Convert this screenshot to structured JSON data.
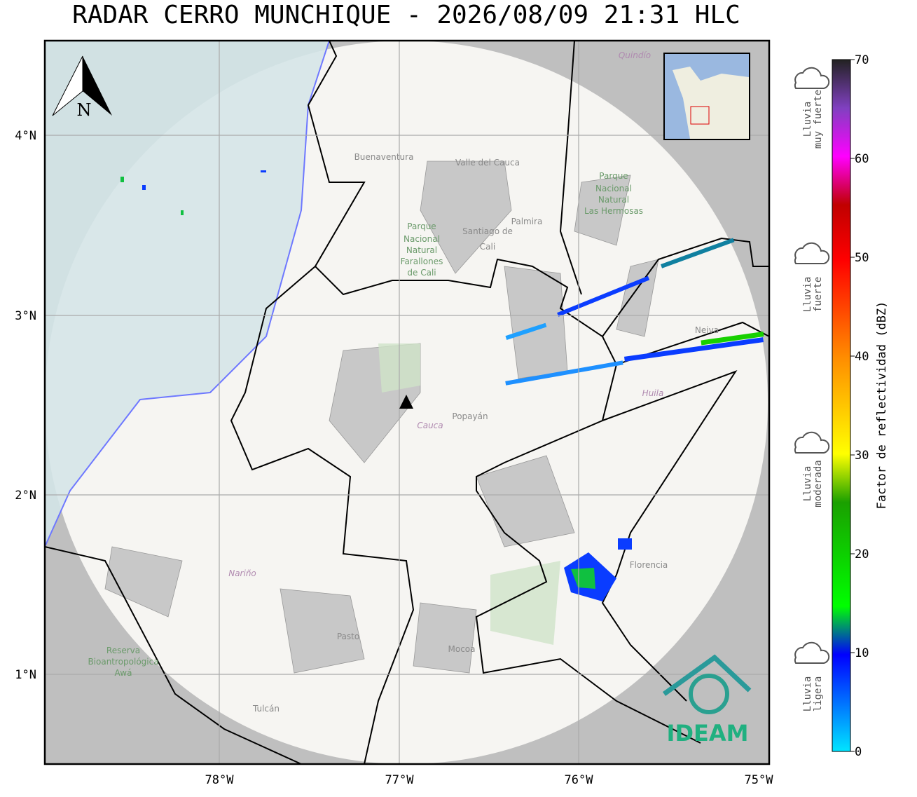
{
  "header": {
    "title": "RADAR CERRO MUNCHIQUE - 2026/08/09 21:31 HLC"
  },
  "map": {
    "lon_ticks": [
      "78°W",
      "77°W",
      "76°W",
      "75°W"
    ],
    "lat_ticks": [
      "4°N",
      "3°N",
      "2°N",
      "1°N"
    ],
    "north": "N",
    "places": [
      {
        "label": "Buenaventura"
      },
      {
        "label": "Valle del Cauca"
      },
      {
        "label": "Palmira"
      },
      {
        "label": "Santiago de"
      },
      {
        "label": "Cali"
      },
      {
        "label": "Parque"
      },
      {
        "label": "Nacional"
      },
      {
        "label": "Natural"
      },
      {
        "label": "Farallones"
      },
      {
        "label": "de Cali"
      },
      {
        "label": "Parque"
      },
      {
        "label": "Nacional"
      },
      {
        "label": "Natural"
      },
      {
        "label": "Las Hermosas"
      },
      {
        "label": "Cauca"
      },
      {
        "label": "Popayán"
      },
      {
        "label": "Huila"
      },
      {
        "label": "Neiva"
      },
      {
        "label": "Nariño"
      },
      {
        "label": "Pasto"
      },
      {
        "label": "Mocoa"
      },
      {
        "label": "Florencia"
      },
      {
        "label": "Tulcán"
      },
      {
        "label": "Reserva"
      },
      {
        "label": "Bioantropológica"
      },
      {
        "label": "Awá"
      },
      {
        "label": "Quindío"
      }
    ],
    "logo": "IDEAM"
  },
  "legend": {
    "rain": [
      {
        "lines": [
          "Lluvia",
          "muy fuerte"
        ]
      },
      {
        "lines": [
          "Lluvia",
          "fuerte"
        ]
      },
      {
        "lines": [
          "Lluvia",
          "moderada"
        ]
      },
      {
        "lines": [
          "Lluvia",
          "ligera"
        ]
      }
    ],
    "colorbar": {
      "label": "Factor de reflectividad (dBZ)",
      "ticks": [
        0,
        10,
        20,
        30,
        40,
        50,
        60,
        70
      ]
    }
  }
}
